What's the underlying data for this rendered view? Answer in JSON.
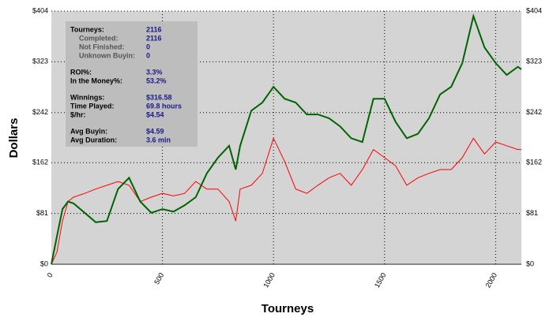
{
  "chart_data": {
    "type": "line",
    "xlabel": "Tourneys",
    "ylabel": "Dollars",
    "x": [
      0,
      25,
      50,
      75,
      100,
      150,
      200,
      250,
      300,
      350,
      400,
      450,
      500,
      550,
      600,
      650,
      700,
      750,
      800,
      830,
      850,
      900,
      950,
      1000,
      1050,
      1100,
      1150,
      1200,
      1250,
      1300,
      1350,
      1400,
      1450,
      1500,
      1550,
      1600,
      1650,
      1700,
      1750,
      1800,
      1850,
      1900,
      1950,
      2000,
      2050,
      2100,
      2116
    ],
    "series": [
      {
        "color": "#006400",
        "values": [
          0,
          44,
          88,
          100,
          97,
          82,
          67,
          69,
          120,
          138,
          100,
          82,
          88,
          84,
          94,
          107,
          145,
          170,
          189,
          151,
          189,
          245,
          258,
          283,
          264,
          258,
          239,
          239,
          233,
          220,
          201,
          195,
          264,
          264,
          227,
          201,
          208,
          233,
          271,
          283,
          321,
          396,
          346,
          321,
          302,
          315,
          311
        ]
      },
      {
        "color": "#ff0000",
        "values": [
          0,
          19,
          69,
          100,
          107,
          113,
          120,
          126,
          132,
          126,
          100,
          107,
          113,
          109,
          113,
          132,
          120,
          120,
          100,
          69,
          120,
          126,
          145,
          201,
          164,
          120,
          113,
          126,
          138,
          145,
          126,
          151,
          183,
          170,
          157,
          126,
          138,
          145,
          151,
          151,
          170,
          201,
          176,
          195,
          189,
          183,
          183
        ]
      }
    ],
    "xlim": [
      0,
      2116
    ],
    "xticks": [
      0,
      500,
      1000,
      1500,
      2000
    ],
    "ylim": [
      0,
      404
    ],
    "yticks": [
      {
        "value": 0,
        "label": "$0"
      },
      {
        "value": 81,
        "label": "$81"
      },
      {
        "value": 162,
        "label": "$162"
      },
      {
        "value": 242,
        "label": "$242"
      },
      {
        "value": 323,
        "label": "$323"
      },
      {
        "value": 404,
        "label": "$404"
      }
    ],
    "grid": true,
    "stats": [
      [
        {
          "label": "Tourneys:",
          "value": "2116",
          "details": [
            {
              "label": "Completed:",
              "value": "2116"
            },
            {
              "label": "Not Finished:",
              "value": "0"
            },
            {
              "label": "Unknown Buyin:",
              "value": "0"
            }
          ]
        }
      ],
      [
        {
          "label": "ROI%:",
          "value": "3.3%"
        },
        {
          "label": "In the Money%:",
          "value": "53.2%"
        }
      ],
      [
        {
          "label": "Winnings:",
          "value": "$316.58"
        },
        {
          "label": "Time Played:",
          "value": "69.8 hours"
        },
        {
          "label": "$/hr:",
          "value": "$4.54"
        }
      ],
      [
        {
          "label": "Avg Buyin:",
          "value": "$4.59"
        },
        {
          "label": "Avg Duration:",
          "value": "3.6 min"
        }
      ]
    ]
  }
}
